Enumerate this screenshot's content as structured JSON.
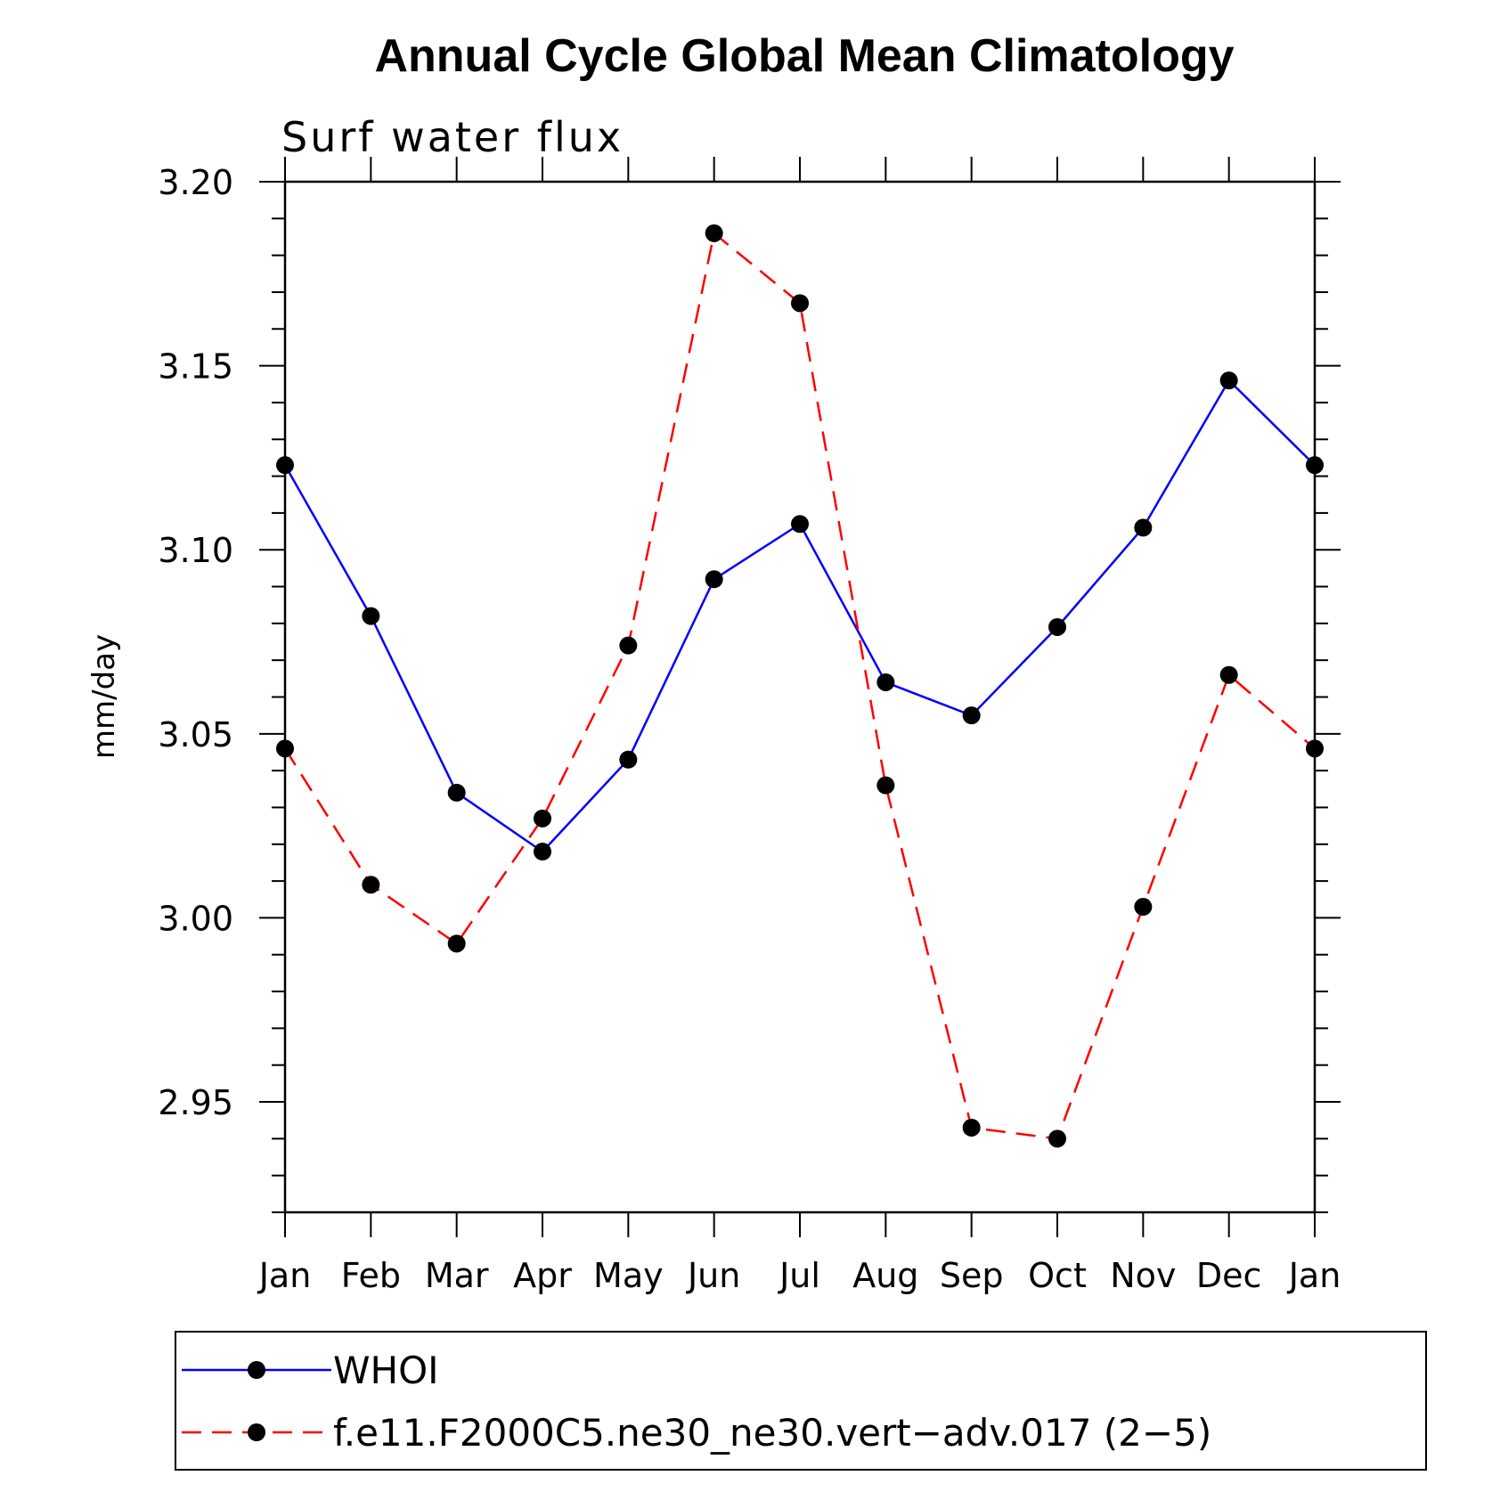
{
  "chart_data": {
    "type": "line",
    "title": "Annual Cycle Global Mean Climatology",
    "subtitle": "Surf water flux",
    "xlabel": "",
    "ylabel": "mm/day",
    "categories": [
      "Jan",
      "Feb",
      "Mar",
      "Apr",
      "May",
      "Jun",
      "Jul",
      "Aug",
      "Sep",
      "Oct",
      "Nov",
      "Dec",
      "Jan"
    ],
    "ylim": [
      2.92,
      3.2
    ],
    "yticks": [
      2.95,
      3.0,
      3.05,
      3.1,
      3.15,
      3.2
    ],
    "ytick_labels": [
      "2.95",
      "3.00",
      "3.05",
      "3.10",
      "3.15",
      "3.20"
    ],
    "minor_ytick_step": 0.01,
    "grid": false,
    "legend_position": "bottom",
    "series": [
      {
        "name": "WHOI",
        "color": "#0000ff",
        "line_style": "solid",
        "marker": "filled-circle",
        "values": [
          3.123,
          3.082,
          3.034,
          3.018,
          3.043,
          3.092,
          3.107,
          3.064,
          3.055,
          3.079,
          3.106,
          3.146,
          3.123
        ]
      },
      {
        "name": "f.e11.F2000C5.ne30_ne30.vert−adv.017 (2−5)",
        "color": "#ff0000",
        "line_style": "dashed",
        "marker": "filled-circle",
        "values": [
          3.046,
          3.009,
          2.993,
          3.027,
          3.074,
          3.186,
          3.167,
          3.036,
          2.943,
          2.94,
          3.003,
          3.066,
          3.046
        ]
      }
    ]
  }
}
